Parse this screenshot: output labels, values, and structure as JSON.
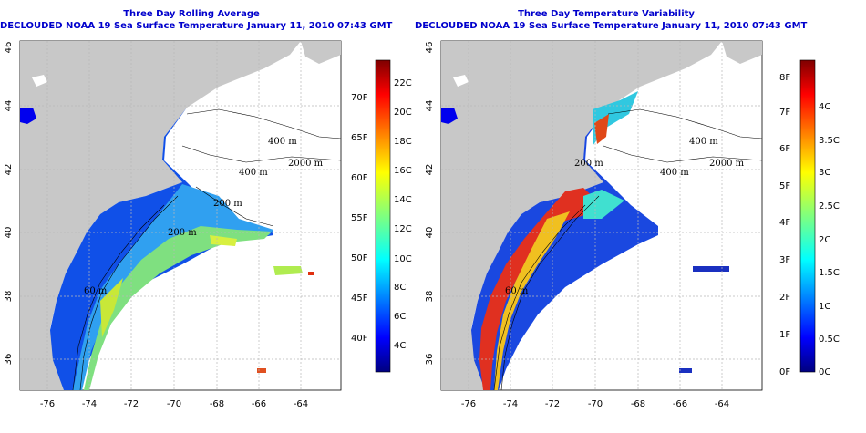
{
  "colors": {
    "land": "#c8c8c8",
    "water": "#ffffff",
    "title": "#0000cc",
    "grid": "#b8b8b8"
  },
  "maps": [
    {
      "id": "avg",
      "title": "Three Day Rolling Average",
      "subtitle": "DECLOUDED NOAA 19 Sea Surface Temperature January 11, 2010 07:43 GMT",
      "colorbar_f": [
        "40F",
        "45F",
        "50F",
        "55F",
        "60F",
        "65F",
        "70F"
      ],
      "colorbar_c": [
        "4C",
        "6C",
        "8C",
        "10C",
        "12C",
        "14C",
        "16C",
        "18C",
        "20C",
        "22C"
      ],
      "contours": [
        {
          "label": "400 m"
        },
        {
          "label": "2000 m"
        },
        {
          "label": "400 m"
        },
        {
          "label": "200 m"
        },
        {
          "label": "200 m"
        },
        {
          "label": "60 m"
        }
      ]
    },
    {
      "id": "var",
      "title": "Three Day Temperature Variability",
      "subtitle": "DECLOUDED NOAA 19 Sea Surface Temperature January 11, 2010 07:43 GMT",
      "colorbar_f": [
        "0F",
        "1F",
        "2F",
        "3F",
        "4F",
        "5F",
        "6F",
        "7F",
        "8F"
      ],
      "colorbar_c": [
        "0C",
        "0.5C",
        "1C",
        "1.5C",
        "2C",
        "2.5C",
        "3C",
        "3.5C",
        "4C"
      ],
      "contours": [
        {
          "label": "400 m"
        },
        {
          "label": "2000 m"
        },
        {
          "label": "400 m"
        },
        {
          "label": "200 m"
        },
        {
          "label": "60 m"
        }
      ]
    }
  ],
  "axes": {
    "lon_ticks": [
      "-76",
      "-74",
      "-72",
      "-70",
      "-68",
      "-66",
      "-64"
    ],
    "lat_ticks": [
      "46",
      "44",
      "42",
      "40",
      "38",
      "36"
    ]
  }
}
